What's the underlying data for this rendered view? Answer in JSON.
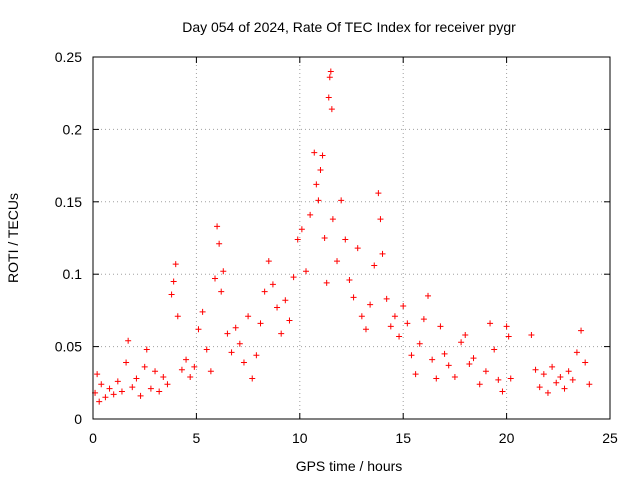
{
  "chart_data": {
    "type": "scatter",
    "title": "Day 054 of 2024, Rate Of TEC Index for receiver pygr",
    "xlabel": "GPS time / hours",
    "ylabel": "ROTI / TECUs",
    "xlim": [
      0,
      25
    ],
    "ylim": [
      0,
      0.25
    ],
    "xticks": [
      0,
      5,
      10,
      15,
      20,
      25
    ],
    "xtick_labels": [
      "0",
      "5",
      "10",
      "15",
      "20",
      "25"
    ],
    "yticks": [
      0,
      0.05,
      0.1,
      0.15,
      0.2,
      0.25
    ],
    "ytick_labels": [
      "0",
      "0.05",
      "0.1",
      "0.15",
      "0.2",
      "0.25"
    ],
    "grid": true,
    "marker": "+",
    "color": "#ff0000",
    "series": [
      {
        "points": [
          [
            0.1,
            0.018
          ],
          [
            0.2,
            0.031
          ],
          [
            0.3,
            0.012
          ],
          [
            0.4,
            0.024
          ],
          [
            0.6,
            0.015
          ],
          [
            0.8,
            0.021
          ],
          [
            1.0,
            0.017
          ],
          [
            1.2,
            0.026
          ],
          [
            1.4,
            0.019
          ],
          [
            1.6,
            0.039
          ],
          [
            1.7,
            0.054
          ],
          [
            1.9,
            0.022
          ],
          [
            2.1,
            0.028
          ],
          [
            2.3,
            0.016
          ],
          [
            2.5,
            0.036
          ],
          [
            2.6,
            0.048
          ],
          [
            2.8,
            0.021
          ],
          [
            3.0,
            0.033
          ],
          [
            3.2,
            0.019
          ],
          [
            3.4,
            0.029
          ],
          [
            3.6,
            0.024
          ],
          [
            3.8,
            0.086
          ],
          [
            3.9,
            0.095
          ],
          [
            4.0,
            0.107
          ],
          [
            4.1,
            0.071
          ],
          [
            4.3,
            0.034
          ],
          [
            4.5,
            0.041
          ],
          [
            4.7,
            0.029
          ],
          [
            4.9,
            0.036
          ],
          [
            5.1,
            0.062
          ],
          [
            5.3,
            0.074
          ],
          [
            5.5,
            0.048
          ],
          [
            5.7,
            0.033
          ],
          [
            5.9,
            0.097
          ],
          [
            6.0,
            0.133
          ],
          [
            6.1,
            0.121
          ],
          [
            6.2,
            0.088
          ],
          [
            6.3,
            0.102
          ],
          [
            6.5,
            0.059
          ],
          [
            6.7,
            0.046
          ],
          [
            6.9,
            0.063
          ],
          [
            7.1,
            0.052
          ],
          [
            7.3,
            0.039
          ],
          [
            7.5,
            0.071
          ],
          [
            7.7,
            0.028
          ],
          [
            7.9,
            0.044
          ],
          [
            8.1,
            0.066
          ],
          [
            8.3,
            0.088
          ],
          [
            8.5,
            0.109
          ],
          [
            8.7,
            0.093
          ],
          [
            8.9,
            0.077
          ],
          [
            9.1,
            0.059
          ],
          [
            9.3,
            0.082
          ],
          [
            9.5,
            0.068
          ],
          [
            9.7,
            0.098
          ],
          [
            9.9,
            0.124
          ],
          [
            10.1,
            0.131
          ],
          [
            10.3,
            0.102
          ],
          [
            10.5,
            0.141
          ],
          [
            10.7,
            0.184
          ],
          [
            10.8,
            0.162
          ],
          [
            10.9,
            0.151
          ],
          [
            11.0,
            0.172
          ],
          [
            11.1,
            0.182
          ],
          [
            11.2,
            0.125
          ],
          [
            11.3,
            0.094
          ],
          [
            11.4,
            0.222
          ],
          [
            11.45,
            0.236
          ],
          [
            11.5,
            0.24
          ],
          [
            11.55,
            0.214
          ],
          [
            11.6,
            0.138
          ],
          [
            11.8,
            0.109
          ],
          [
            12.0,
            0.151
          ],
          [
            12.2,
            0.124
          ],
          [
            12.4,
            0.096
          ],
          [
            12.6,
            0.084
          ],
          [
            12.8,
            0.118
          ],
          [
            13.0,
            0.071
          ],
          [
            13.2,
            0.062
          ],
          [
            13.4,
            0.079
          ],
          [
            13.6,
            0.106
          ],
          [
            13.8,
            0.156
          ],
          [
            13.9,
            0.138
          ],
          [
            14.0,
            0.114
          ],
          [
            14.2,
            0.083
          ],
          [
            14.4,
            0.064
          ],
          [
            14.6,
            0.071
          ],
          [
            14.8,
            0.057
          ],
          [
            15.0,
            0.078
          ],
          [
            15.2,
            0.066
          ],
          [
            15.4,
            0.044
          ],
          [
            15.6,
            0.031
          ],
          [
            15.8,
            0.052
          ],
          [
            16.0,
            0.069
          ],
          [
            16.2,
            0.085
          ],
          [
            16.4,
            0.041
          ],
          [
            16.6,
            0.028
          ],
          [
            16.8,
            0.064
          ],
          [
            17.0,
            0.045
          ],
          [
            17.2,
            0.037
          ],
          [
            17.5,
            0.029
          ],
          [
            17.8,
            0.053
          ],
          [
            18.0,
            0.058
          ],
          [
            18.2,
            0.038
          ],
          [
            18.4,
            0.042
          ],
          [
            18.7,
            0.024
          ],
          [
            19.0,
            0.033
          ],
          [
            19.2,
            0.066
          ],
          [
            19.4,
            0.048
          ],
          [
            19.6,
            0.027
          ],
          [
            19.8,
            0.019
          ],
          [
            20.0,
            0.064
          ],
          [
            20.1,
            0.057
          ],
          [
            20.2,
            0.028
          ],
          [
            21.2,
            0.058
          ],
          [
            21.4,
            0.034
          ],
          [
            21.6,
            0.022
          ],
          [
            21.8,
            0.031
          ],
          [
            22.0,
            0.018
          ],
          [
            22.2,
            0.036
          ],
          [
            22.4,
            0.025
          ],
          [
            22.6,
            0.029
          ],
          [
            22.8,
            0.021
          ],
          [
            23.0,
            0.033
          ],
          [
            23.2,
            0.027
          ],
          [
            23.4,
            0.046
          ],
          [
            23.6,
            0.061
          ],
          [
            23.8,
            0.039
          ],
          [
            24.0,
            0.024
          ]
        ]
      }
    ]
  }
}
